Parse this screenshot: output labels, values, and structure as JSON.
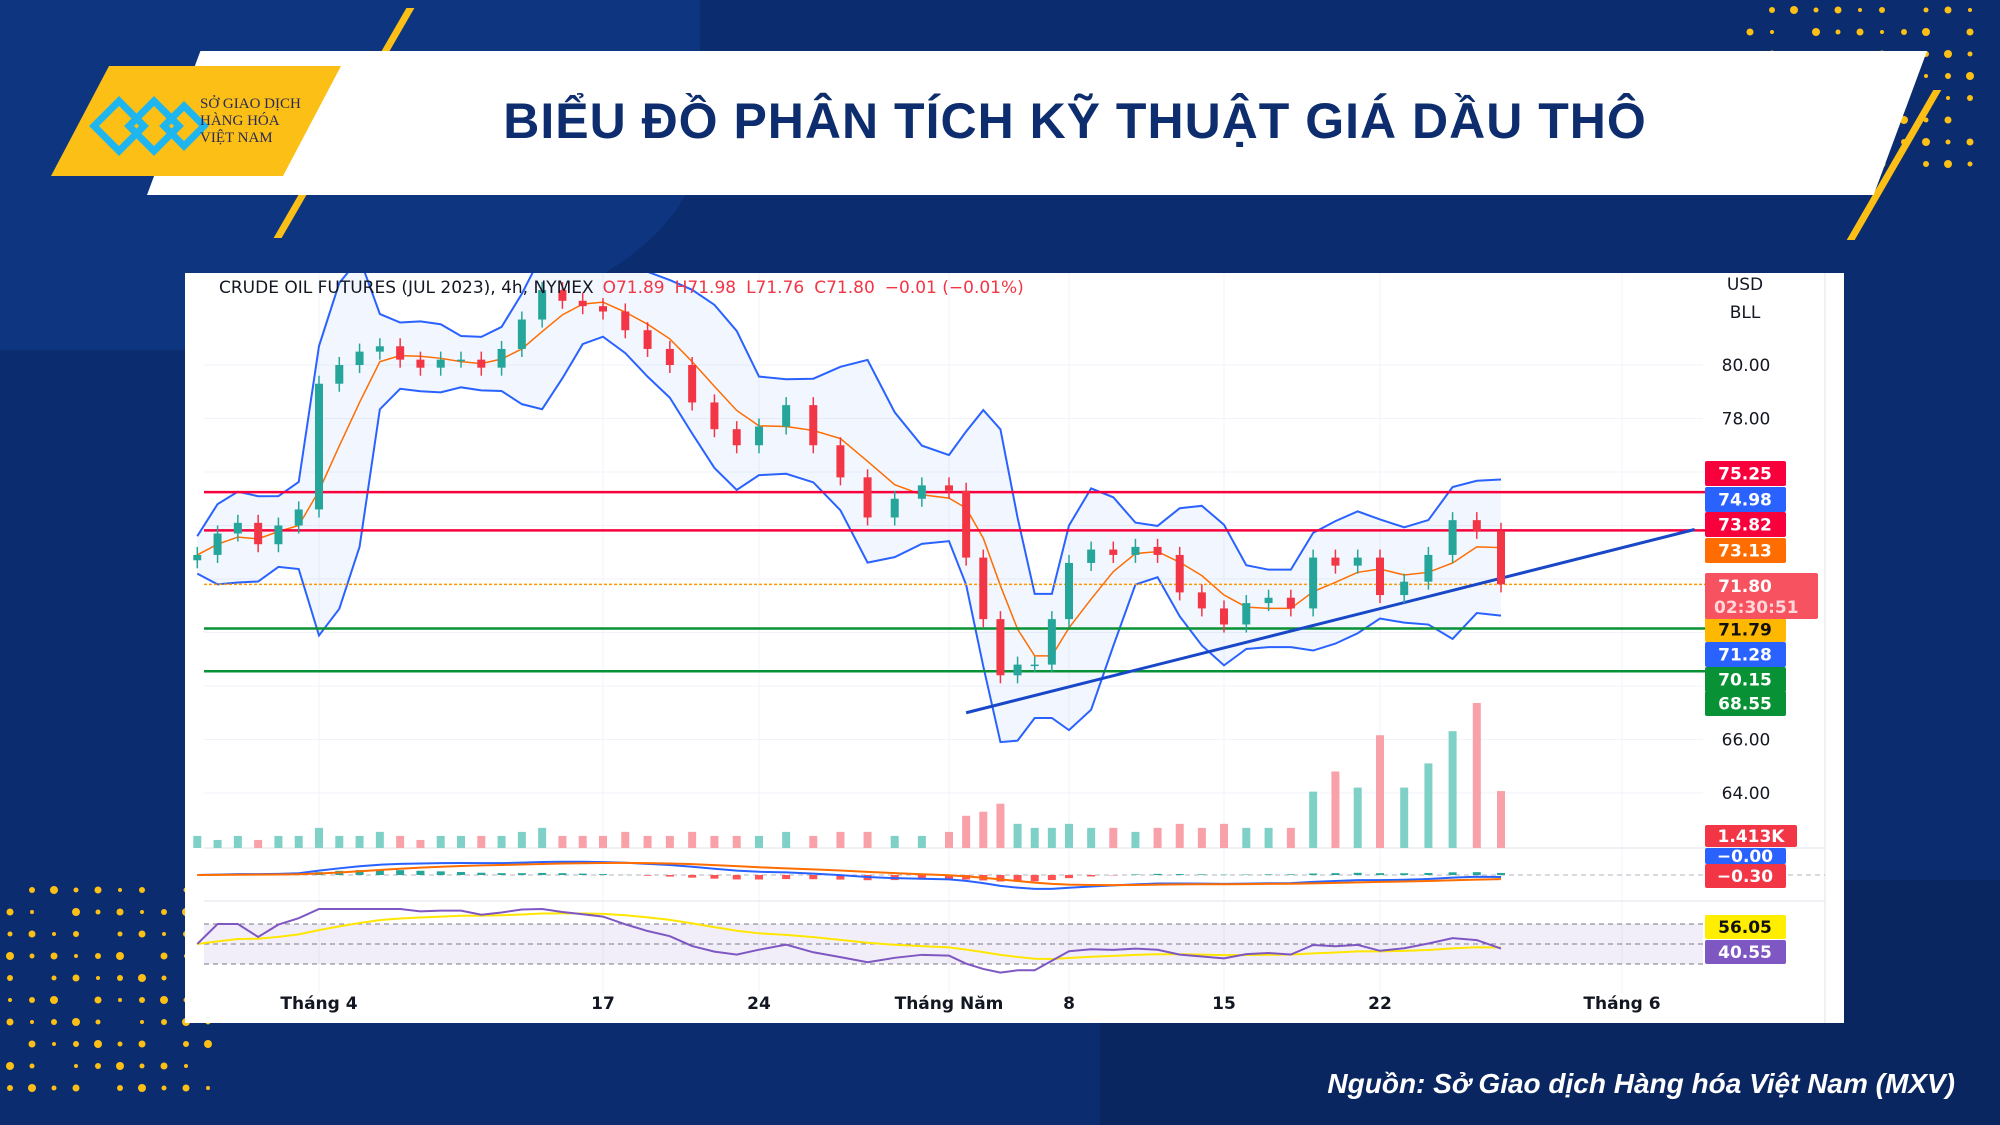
{
  "header": {
    "title": "BIỂU ĐỒ PHÂN TÍCH KỸ THUẬT GIÁ DẦU THÔ",
    "logo_text": [
      "SỞ GIAO DỊCH",
      "HÀNG HÓA",
      "VIỆT NAM"
    ]
  },
  "footer": {
    "source": "Nguồn: Sở Giao dịch Hàng hóa Việt Nam (MXV)"
  },
  "colors": {
    "background": "#0b2c6e",
    "accent": "#fbbf16",
    "up": "#26a69a",
    "down": "#f23645",
    "bollinger": "#2962ff",
    "ma": "#ff6d00"
  },
  "chart_data": {
    "type": "candlestick",
    "legend": {
      "symbol": "CRUDE OIL FUTURES (JUL 2023), 4h, NYMEX",
      "open": "O71.89",
      "high": "H71.98",
      "low": "L71.76",
      "close": "C71.80",
      "change": "−0.01 (−0.01%)"
    },
    "currency": "USD",
    "unit": "BLL",
    "y_ticks": [
      "80.00",
      "78.00",
      "66.00",
      "64.00"
    ],
    "ylim": [
      61.9,
      83.2
    ],
    "x_ticks": [
      {
        "date": "2023-04-03",
        "label": "Tháng 4"
      },
      {
        "date": "2023-04-17",
        "label": "17"
      },
      {
        "date": "2023-04-24",
        "label": "24"
      },
      {
        "date": "2023-05-01",
        "label": "Tháng Năm"
      },
      {
        "date": "2023-05-08",
        "label": "8"
      },
      {
        "date": "2023-05-15",
        "label": "15"
      },
      {
        "date": "2023-05-22",
        "label": "22"
      },
      {
        "date": "2023-06-01",
        "label": "Tháng 6"
      }
    ],
    "closes": [
      [
        "2023-03-28",
        72.9
      ],
      [
        "2023-03-29",
        73.7
      ],
      [
        "2023-03-30",
        74.1
      ],
      [
        "2023-03-31",
        73.3
      ],
      [
        "2023-04-01",
        74.0
      ],
      [
        "2023-04-02",
        74.6
      ],
      [
        "2023-04-03",
        79.3
      ],
      [
        "2023-04-04",
        80.0
      ],
      [
        "2023-04-05",
        80.5
      ],
      [
        "2023-04-06",
        80.7
      ],
      [
        "2023-04-07",
        80.2
      ],
      [
        "2023-04-08",
        79.9
      ],
      [
        "2023-04-09",
        80.2
      ],
      [
        "2023-04-10",
        80.2
      ],
      [
        "2023-04-11",
        79.9
      ],
      [
        "2023-04-12",
        80.6
      ],
      [
        "2023-04-13",
        81.7
      ],
      [
        "2023-04-14",
        82.8
      ],
      [
        "2023-04-15",
        82.4
      ],
      [
        "2023-04-16",
        82.2
      ],
      [
        "2023-04-17",
        82.0
      ],
      [
        "2023-04-18",
        81.3
      ],
      [
        "2023-04-19",
        80.6
      ],
      [
        "2023-04-20",
        80.0
      ],
      [
        "2023-04-21",
        78.6
      ],
      [
        "2023-04-22",
        77.6
      ],
      [
        "2023-04-23",
        77.0
      ],
      [
        "2023-04-24",
        77.7
      ],
      [
        "2023-04-25",
        78.5
      ],
      [
        "2023-04-26",
        77.0
      ],
      [
        "2023-04-27",
        75.8
      ],
      [
        "2023-04-28",
        74.3
      ],
      [
        "2023-04-29",
        75.0
      ],
      [
        "2023-04-30",
        75.5
      ],
      [
        "2023-05-01",
        75.3
      ],
      [
        "2023-05-02",
        72.8
      ],
      [
        "2023-05-03",
        70.5
      ],
      [
        "2023-05-04",
        68.4
      ],
      [
        "2023-05-05",
        68.8
      ],
      [
        "2023-05-06",
        68.8
      ],
      [
        "2023-05-07",
        70.5
      ],
      [
        "2023-05-08",
        72.6
      ],
      [
        "2023-05-09",
        73.1
      ],
      [
        "2023-05-10",
        72.9
      ],
      [
        "2023-05-11",
        73.2
      ],
      [
        "2023-05-12",
        72.9
      ],
      [
        "2023-05-13",
        71.5
      ],
      [
        "2023-05-14",
        70.9
      ],
      [
        "2023-05-15",
        70.3
      ],
      [
        "2023-05-16",
        71.1
      ],
      [
        "2023-05-17",
        71.3
      ],
      [
        "2023-05-18",
        70.9
      ],
      [
        "2023-05-19",
        72.8
      ],
      [
        "2023-05-20",
        72.5
      ],
      [
        "2023-05-21",
        72.8
      ],
      [
        "2023-05-22",
        71.4
      ],
      [
        "2023-05-23",
        71.9
      ],
      [
        "2023-05-24",
        72.9
      ],
      [
        "2023-05-25",
        74.2
      ],
      [
        "2023-05-26",
        73.8
      ],
      [
        "2023-05-27",
        71.8
      ]
    ],
    "volume_k": [
      0.3,
      0.2,
      0.3,
      0.2,
      0.3,
      0.3,
      0.5,
      0.3,
      0.3,
      0.4,
      0.3,
      0.2,
      0.3,
      0.3,
      0.3,
      0.3,
      0.4,
      0.5,
      0.3,
      0.3,
      0.3,
      0.4,
      0.3,
      0.3,
      0.4,
      0.3,
      0.3,
      0.3,
      0.4,
      0.3,
      0.4,
      0.4,
      0.3,
      0.3,
      0.4,
      0.8,
      0.9,
      1.1,
      0.6,
      0.5,
      0.5,
      0.6,
      0.5,
      0.5,
      0.4,
      0.5,
      0.6,
      0.5,
      0.6,
      0.5,
      0.5,
      0.5,
      1.4,
      1.9,
      1.5,
      2.8,
      1.5,
      2.1,
      2.9,
      3.6,
      1.413
    ],
    "levels": [
      {
        "price": 75.25,
        "label": "75.25",
        "color": "#f7003c",
        "style": "solid"
      },
      {
        "price": 73.82,
        "label": "73.82",
        "color": "#f7003c",
        "style": "solid"
      },
      {
        "price": 71.8,
        "label": "71.80",
        "color": "#ff9800",
        "style": "dotted"
      },
      {
        "price": 70.15,
        "label": "70.15",
        "color": "#089135",
        "style": "solid"
      },
      {
        "price": 68.55,
        "label": "68.55",
        "color": "#089135",
        "style": "solid"
      }
    ],
    "trendline": [
      [
        "2023-05-02",
        67.0
      ],
      [
        "2023-06-04",
        73.85
      ]
    ],
    "price_labels": [
      {
        "text": "75.25",
        "bg": "#f7003c",
        "fg": "#ffffff"
      },
      {
        "text": "74.98",
        "bg": "#2962ff",
        "fg": "#ffffff"
      },
      {
        "text": "73.82",
        "bg": "#f7003c",
        "fg": "#ffffff"
      },
      {
        "text": "73.13",
        "bg": "#ff6d00",
        "fg": "#ffffff"
      },
      {
        "text": "71.79",
        "bg": "#ffb800",
        "fg": "#111111"
      },
      {
        "text": "71.28",
        "bg": "#2962ff",
        "fg": "#ffffff"
      },
      {
        "text": "70.15",
        "bg": "#089135",
        "fg": "#ffffff"
      },
      {
        "text": "68.55",
        "bg": "#089135",
        "fg": "#ffffff"
      }
    ],
    "last_price": {
      "text": "71.80",
      "countdown": "02:30:51",
      "bg": "#f7525f"
    },
    "volume_label": {
      "text": "1.413K",
      "bg": "#f23645"
    },
    "macd_labels": [
      {
        "text": "−0.00",
        "bg": "#2962ff"
      },
      {
        "text": "−0.30",
        "bg": "#f23645"
      }
    ],
    "rsi_labels": [
      {
        "text": "56.05",
        "bg": "#ffee00",
        "fg": "#111111"
      },
      {
        "text": "40.55",
        "bg": "#7e57c2",
        "fg": "#ffffff"
      }
    ],
    "rsi_bands": [
      70,
      50,
      30
    ]
  }
}
